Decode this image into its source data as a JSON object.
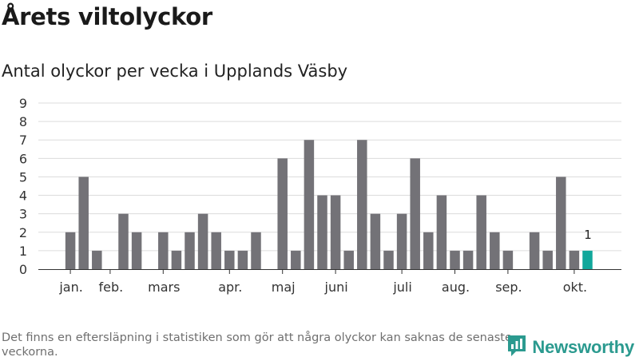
{
  "title": "Årets viltolyckor",
  "subtitle": "Antal olyckor per vecka i Upplands Väsby",
  "footnote": "Det finns en eftersläpning i statistiken som gör att några olyckor kan saknas de senaste veckorna.",
  "brand": {
    "name": "Newsworthy",
    "color": "#2b9a8f",
    "icon": "newsworthy-logo-icon"
  },
  "colors": {
    "bar": "#737277",
    "highlight": "#12a79b",
    "grid": "#dcdcdc",
    "axis": "#333333"
  },
  "chart_data": {
    "type": "bar",
    "title": "Årets viltolyckor",
    "subtitle": "Antal olyckor per vecka i Upplands Väsby",
    "xlabel": "",
    "ylabel": "",
    "ylim": [
      0,
      9
    ],
    "yticks": [
      0,
      1,
      2,
      3,
      4,
      5,
      6,
      7,
      8,
      9
    ],
    "grid": true,
    "weeks": [
      1,
      2,
      3,
      4,
      5,
      6,
      7,
      8,
      9,
      10,
      11,
      12,
      13,
      14,
      15,
      16,
      17,
      18,
      19,
      20,
      21,
      22,
      23,
      24,
      25,
      26,
      27,
      28,
      29,
      30,
      31,
      32,
      33,
      34,
      35,
      36,
      37,
      38,
      39,
      40,
      41
    ],
    "values": [
      0,
      2,
      5,
      1,
      0,
      3,
      2,
      0,
      2,
      1,
      2,
      3,
      2,
      1,
      1,
      2,
      0,
      6,
      1,
      7,
      4,
      4,
      1,
      7,
      3,
      1,
      3,
      6,
      2,
      4,
      1,
      1,
      4,
      2,
      1,
      0,
      2,
      1,
      5,
      1,
      1
    ],
    "highlight_index": 40,
    "highlight_label": "1",
    "month_labels": [
      {
        "label": "jan.",
        "week": 2
      },
      {
        "label": "feb.",
        "week": 5
      },
      {
        "label": "mars",
        "week": 9
      },
      {
        "label": "apr.",
        "week": 14
      },
      {
        "label": "maj",
        "week": 18
      },
      {
        "label": "juni",
        "week": 22
      },
      {
        "label": "juli",
        "week": 27
      },
      {
        "label": "aug.",
        "week": 31
      },
      {
        "label": "sep.",
        "week": 35
      },
      {
        "label": "okt.",
        "week": 40
      }
    ]
  }
}
